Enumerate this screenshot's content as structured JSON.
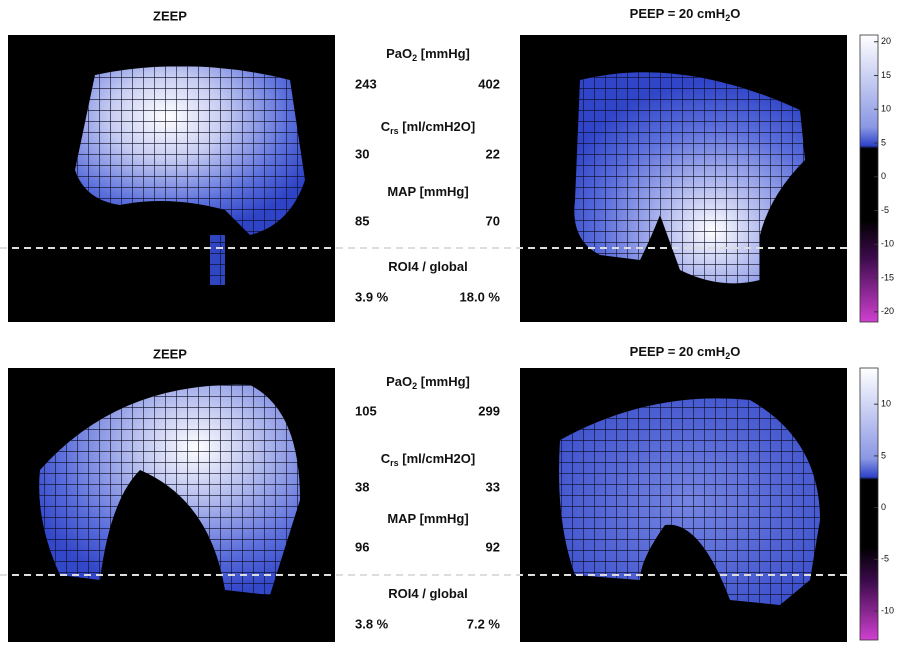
{
  "rows": [
    {
      "left_title": "ZEEP",
      "right_title": {
        "text": "PEEP = 20 cmH",
        "sub": "2",
        "tail": "O"
      },
      "metrics": [
        {
          "label": {
            "text": "PaO",
            "sub": "2",
            "tail": " [mmHg]"
          },
          "zeep": "243",
          "peep": "402"
        },
        {
          "label": {
            "text": "C",
            "sub": "rs",
            "tail": " [ml/cmH2O]"
          },
          "zeep": "30",
          "peep": "22"
        },
        {
          "label": {
            "text": "MAP [mmHg]"
          },
          "zeep": "85",
          "peep": "70"
        },
        {
          "label": {
            "text": "ROI4 / global"
          },
          "zeep": "3.9 %",
          "peep": "18.0 %"
        }
      ],
      "colorbar": {
        "lim": [
          -21.5,
          21
        ],
        "ticks": [
          20,
          15,
          10,
          5,
          0,
          -5,
          -10,
          -15,
          -20
        ]
      }
    },
    {
      "left_title": "ZEEP",
      "right_title": {
        "text": "PEEP = 20 cmH",
        "sub": "2",
        "tail": "O"
      },
      "metrics": [
        {
          "label": {
            "text": "PaO",
            "sub": "2",
            "tail": " [mmHg]"
          },
          "zeep": "105",
          "peep": "299"
        },
        {
          "label": {
            "text": "C",
            "sub": "rs",
            "tail": " [ml/cmH2O]"
          },
          "zeep": "38",
          "peep": "33"
        },
        {
          "label": {
            "text": "MAP [mmHg]"
          },
          "zeep": "96",
          "peep": "92"
        },
        {
          "label": {
            "text": "ROI4 / global"
          },
          "zeep": "3.8 %",
          "peep": "7.2 %"
        }
      ],
      "colorbar": {
        "lim": [
          -12.8,
          13.5
        ],
        "ticks": [
          10,
          5,
          0,
          -5,
          -10
        ]
      }
    }
  ]
}
